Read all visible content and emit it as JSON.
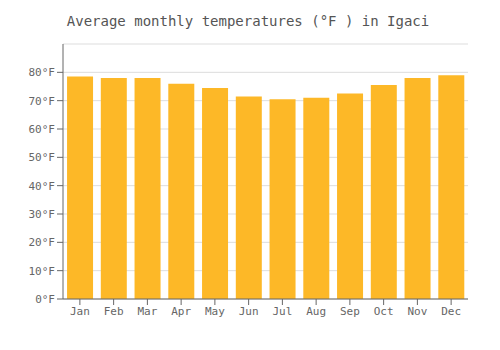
{
  "chart_data": {
    "type": "bar",
    "title": "Average monthly temperatures (°F ) in Igaci",
    "categories": [
      "Jan",
      "Feb",
      "Mar",
      "Apr",
      "May",
      "Jun",
      "Jul",
      "Aug",
      "Sep",
      "Oct",
      "Nov",
      "Dec"
    ],
    "values": [
      78.5,
      78.0,
      78.0,
      76.0,
      74.5,
      71.5,
      70.5,
      71.0,
      72.5,
      75.5,
      78.0,
      79.0
    ],
    "color": "#FDB827",
    "ylim": [
      0,
      90
    ],
    "yticks": [
      {
        "value": 0,
        "label": "0°F"
      },
      {
        "value": 10,
        "label": "10°F"
      },
      {
        "value": 20,
        "label": "20°F"
      },
      {
        "value": 30,
        "label": "30°F"
      },
      {
        "value": 40,
        "label": "40°F"
      },
      {
        "value": 50,
        "label": "50°F"
      },
      {
        "value": 60,
        "label": "60°F"
      },
      {
        "value": 70,
        "label": "70°F"
      },
      {
        "value": 80,
        "label": "80°F"
      }
    ],
    "grid": true
  }
}
